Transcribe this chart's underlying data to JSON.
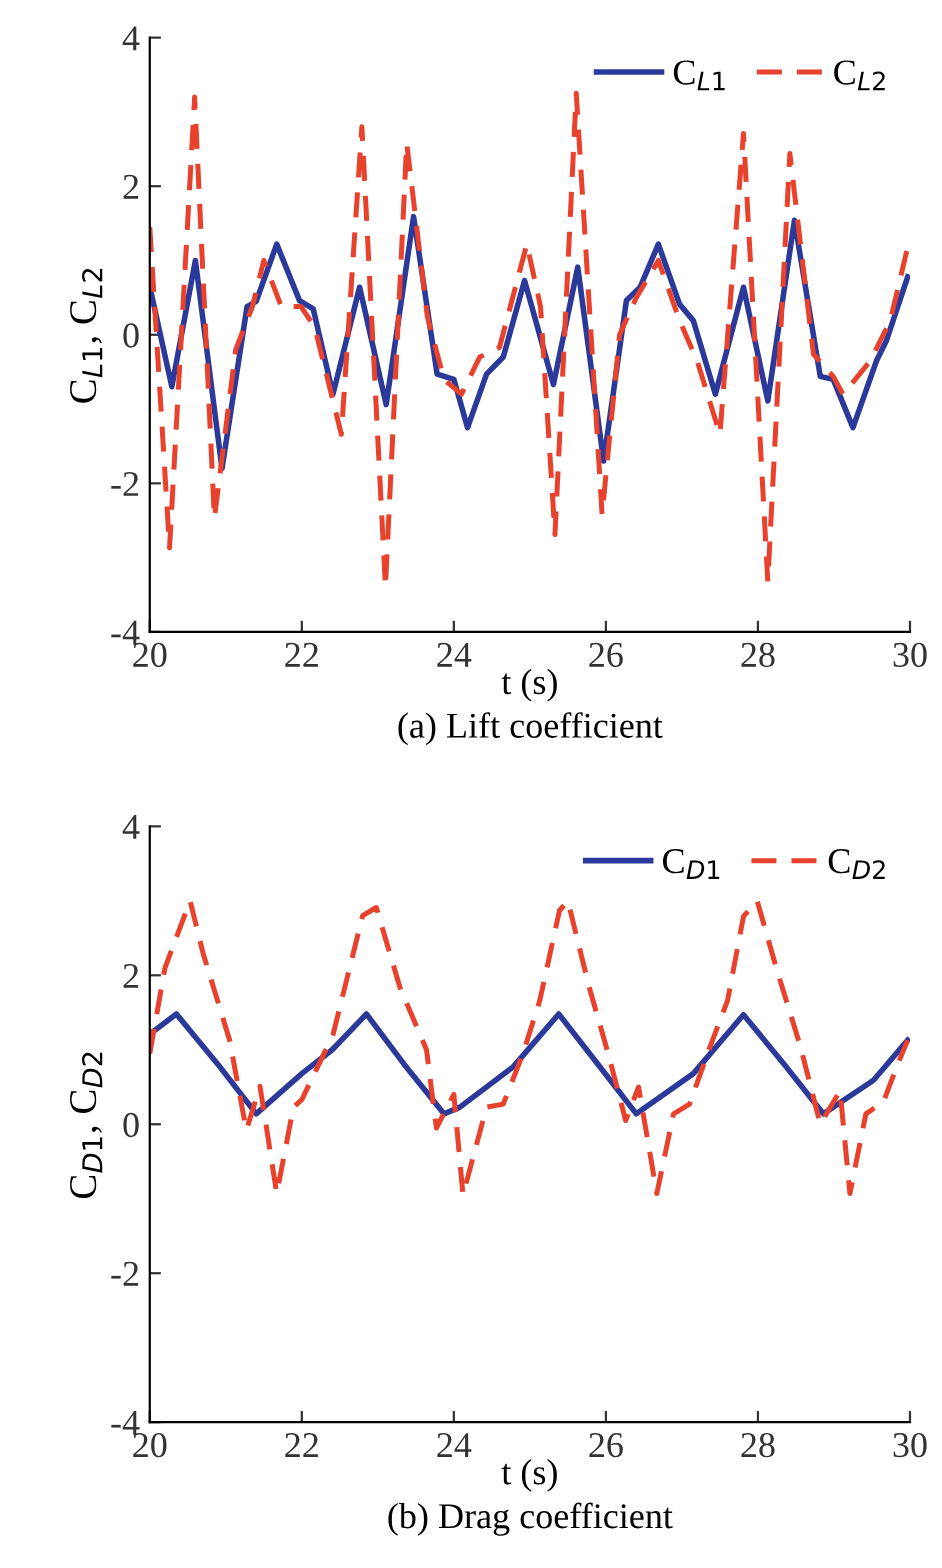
{
  "chart_data": [
    {
      "type": "line",
      "title": "(a) Lift coefficient",
      "xlabel": "t (s)",
      "ylabel": "C$_{L1}$, C$_{L2}$",
      "xlim": [
        20,
        30
      ],
      "xticks": [
        20,
        22,
        24,
        26,
        28,
        30
      ],
      "ylim": [
        -4,
        4
      ],
      "yticks": [
        -4,
        -2,
        0,
        2,
        4
      ],
      "grid": false,
      "legend": "top right",
      "marker": "none",
      "series": [
        {
          "name": "C$_{L1}$",
          "color": "#2b3a9a",
          "line_style": "solid",
          "x": [
            20.0,
            20.29,
            20.6,
            20.95,
            21.28,
            21.4,
            21.67,
            21.97,
            22.15,
            22.41,
            22.76,
            23.11,
            23.47,
            23.78,
            24.0,
            24.18,
            24.43,
            24.65,
            24.93,
            25.31,
            25.63,
            25.97,
            26.27,
            26.45,
            26.69,
            26.97,
            27.15,
            27.44,
            27.81,
            28.13,
            28.48,
            28.82,
            28.99,
            29.25,
            29.56,
            29.69,
            29.97
          ],
          "values": [
            0.65,
            -0.7,
            1.0,
            -1.8,
            0.38,
            0.45,
            1.22,
            0.46,
            0.35,
            -0.8,
            0.64,
            -0.94,
            1.59,
            -0.53,
            -0.6,
            -1.25,
            -0.53,
            -0.3,
            0.73,
            -0.67,
            0.91,
            -1.7,
            0.46,
            0.64,
            1.22,
            0.41,
            0.19,
            -0.8,
            0.64,
            -0.89,
            1.54,
            -0.56,
            -0.6,
            -1.25,
            -0.35,
            -0.08,
            0.78
          ]
        },
        {
          "name": "C$_{L2}$",
          "color": "#e8412c",
          "line_style": "dashed",
          "x": [
            20.0,
            20.26,
            20.59,
            20.85,
            21.13,
            21.35,
            21.5,
            21.73,
            21.99,
            22.17,
            22.52,
            22.79,
            23.1,
            23.38,
            23.65,
            23.87,
            24.1,
            24.34,
            24.6,
            24.96,
            25.14,
            25.33,
            25.61,
            25.95,
            26.18,
            26.4,
            26.69,
            26.97,
            27.2,
            27.5,
            27.81,
            28.13,
            28.42,
            28.73,
            28.99,
            29.12,
            29.48,
            29.74,
            29.97
          ],
          "values": [
            1.45,
            -2.87,
            3.2,
            -2.47,
            -0.2,
            0.38,
            1.0,
            0.38,
            0.38,
            0.1,
            -1.34,
            2.8,
            -3.4,
            2.58,
            0.25,
            -0.6,
            -0.8,
            -0.3,
            -0.17,
            1.22,
            0.38,
            -2.69,
            3.25,
            -2.42,
            0.0,
            0.5,
            1.0,
            0.19,
            -0.35,
            -1.34,
            2.71,
            -3.32,
            2.44,
            -0.26,
            -0.56,
            -0.8,
            -0.35,
            0.19,
            1.18
          ]
        }
      ]
    },
    {
      "type": "line",
      "title": "(b) Drag coefficient",
      "xlabel": "t (s)",
      "ylabel": "C$_{D1}$, C$_{D2}$",
      "xlim": [
        20,
        30
      ],
      "xticks": [
        20,
        22,
        24,
        26,
        28,
        30
      ],
      "ylim": [
        -4,
        4
      ],
      "yticks": [
        -4,
        -2,
        0,
        2,
        4
      ],
      "grid": false,
      "legend": "top right",
      "marker": "none",
      "series": [
        {
          "name": "C$_{D1}$",
          "color": "#2b3a9a",
          "line_style": "solid",
          "x": [
            20.0,
            20.35,
            20.9,
            21.4,
            22.0,
            22.4,
            22.85,
            23.35,
            23.87,
            24.08,
            24.78,
            25.38,
            25.9,
            26.4,
            27.15,
            27.81,
            28.35,
            28.86,
            29.52,
            29.97
          ],
          "values": [
            1.21,
            1.48,
            0.8,
            0.14,
            0.68,
            1.0,
            1.48,
            0.8,
            0.14,
            0.23,
            0.77,
            1.48,
            0.8,
            0.14,
            0.68,
            1.47,
            0.8,
            0.14,
            0.59,
            1.13
          ]
        },
        {
          "name": "C$_{D2}$",
          "color": "#e8412c",
          "line_style": "dashed",
          "x": [
            20.0,
            20.2,
            20.53,
            20.7,
            21.05,
            21.27,
            21.45,
            21.67,
            21.89,
            22.0,
            22.41,
            22.8,
            22.98,
            23.29,
            23.64,
            23.77,
            24.0,
            24.12,
            24.43,
            24.65,
            24.91,
            25.13,
            25.39,
            25.5,
            25.78,
            26.03,
            26.26,
            26.43,
            26.67,
            26.89,
            27.1,
            27.37,
            27.6,
            27.81,
            27.99,
            28.25,
            28.56,
            28.82,
            29.08,
            29.21,
            29.42,
            29.65,
            29.86,
            29.97
          ],
          "values": [
            0.95,
            2.1,
            3.0,
            2.3,
            1.13,
            -0.08,
            0.51,
            -0.93,
            0.23,
            0.33,
            1.2,
            2.8,
            2.91,
            1.84,
            1.0,
            -0.05,
            0.4,
            -0.95,
            0.23,
            0.27,
            0.95,
            1.66,
            2.87,
            3.0,
            1.84,
            0.95,
            0.05,
            0.5,
            -0.93,
            0.14,
            0.27,
            1.04,
            1.66,
            2.79,
            3.0,
            2.07,
            1.04,
            0.0,
            0.45,
            -0.93,
            0.14,
            0.3,
            0.86,
            1.13
          ]
        }
      ]
    }
  ]
}
